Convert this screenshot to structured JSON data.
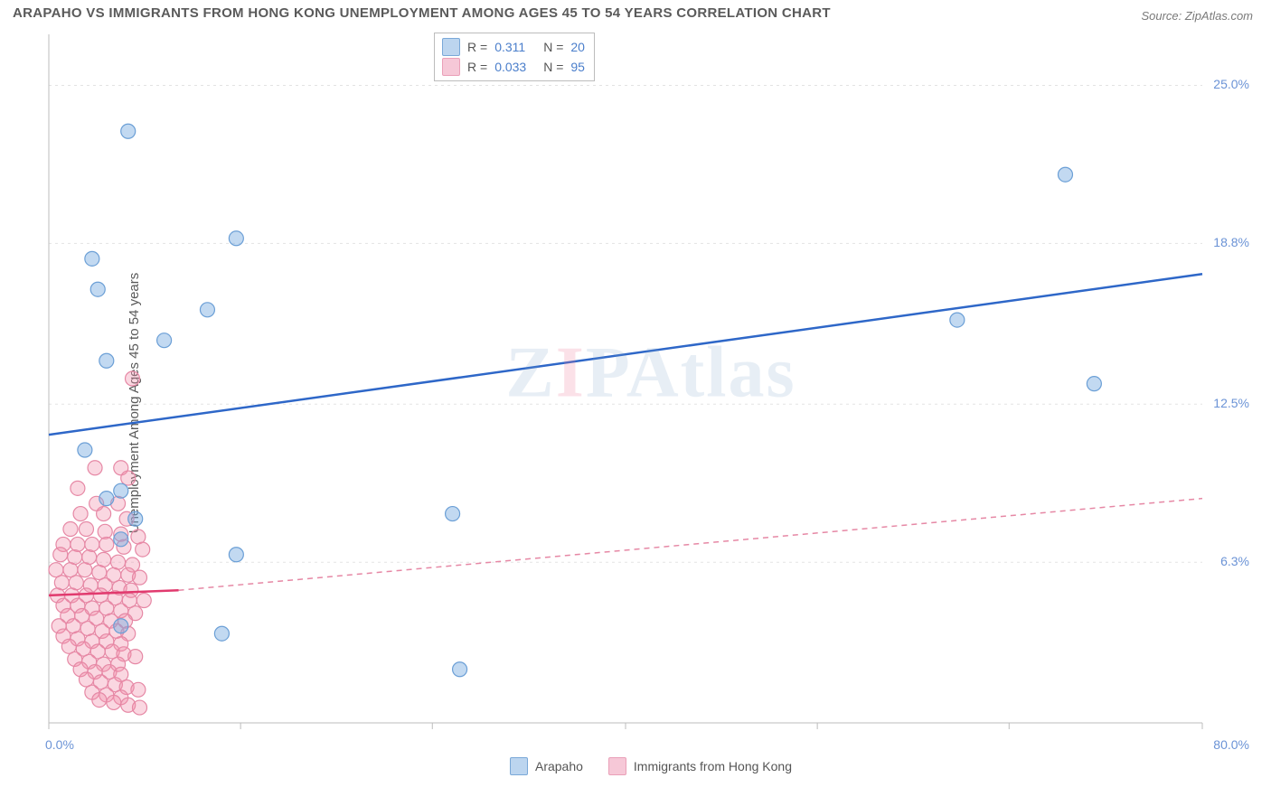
{
  "title": "ARAPAHO VS IMMIGRANTS FROM HONG KONG UNEMPLOYMENT AMONG AGES 45 TO 54 YEARS CORRELATION CHART",
  "source_label": "Source: ZipAtlas.com",
  "y_axis_label": "Unemployment Among Ages 45 to 54 years",
  "watermark": {
    "z": "Z",
    "i": "I",
    "p": "P",
    "atlas": "Atlas"
  },
  "chart": {
    "type": "scatter",
    "background_color": "#ffffff",
    "grid_color": "#e3e3e3",
    "axis_color": "#bcbcbc",
    "tick_label_color": "#6b93d6",
    "xlim": [
      0,
      80
    ],
    "ylim": [
      0,
      27
    ],
    "x_tick_positions": [
      0,
      13.3,
      26.6,
      40,
      53.3,
      66.6,
      80
    ],
    "x_tick_labels": {
      "0": "0.0%",
      "80": "80.0%"
    },
    "y_gridlines": [
      6.3,
      12.5,
      18.8,
      25.0
    ],
    "y_tick_labels": [
      "6.3%",
      "12.5%",
      "18.8%",
      "25.0%"
    ],
    "marker_radius": 8,
    "marker_stroke_width": 1.2,
    "trend_line_width_solid": 2.5,
    "trend_line_width_dash": 1.5,
    "dash_pattern": "6,5"
  },
  "series": {
    "arapaho": {
      "label": "Arapaho",
      "color_fill": "rgba(120,170,225,0.45)",
      "color_stroke": "#6b9fd6",
      "swatch_fill": "#bcd5ef",
      "swatch_border": "#7aa8d8",
      "stats": {
        "R_label": "R =",
        "R": "0.311",
        "N_label": "N =",
        "N": "20"
      },
      "points": [
        [
          5.5,
          23.2
        ],
        [
          13.0,
          19.0
        ],
        [
          3.0,
          18.2
        ],
        [
          3.4,
          17.0
        ],
        [
          11.0,
          16.2
        ],
        [
          8.0,
          15.0
        ],
        [
          4.0,
          14.2
        ],
        [
          70.5,
          21.5
        ],
        [
          63.0,
          15.8
        ],
        [
          72.5,
          13.3
        ],
        [
          2.5,
          10.7
        ],
        [
          5.0,
          9.1
        ],
        [
          4.0,
          8.8
        ],
        [
          6.0,
          8.0
        ],
        [
          28.0,
          8.2
        ],
        [
          5.0,
          7.2
        ],
        [
          13.0,
          6.6
        ],
        [
          12.0,
          3.5
        ],
        [
          5.0,
          3.8
        ],
        [
          28.5,
          2.1
        ]
      ],
      "trend": {
        "x1": 0,
        "y1": 11.3,
        "x2": 80,
        "y2": 17.6,
        "color": "#2e67c8",
        "dashed": false
      }
    },
    "hongkong": {
      "label": "Immigrants from Hong Kong",
      "color_fill": "rgba(240,140,170,0.35)",
      "color_stroke": "#e688a5",
      "swatch_fill": "#f6c8d7",
      "swatch_border": "#eaa0b8",
      "stats": {
        "R_label": "R =",
        "R": "0.033",
        "N_label": "N =",
        "N": "95"
      },
      "points": [
        [
          5.8,
          13.5
        ],
        [
          3.2,
          10.0
        ],
        [
          5.0,
          10.0
        ],
        [
          5.5,
          9.6
        ],
        [
          2.0,
          9.2
        ],
        [
          3.3,
          8.6
        ],
        [
          4.8,
          8.6
        ],
        [
          2.2,
          8.2
        ],
        [
          3.8,
          8.2
        ],
        [
          5.4,
          8.0
        ],
        [
          1.5,
          7.6
        ],
        [
          2.6,
          7.6
        ],
        [
          3.9,
          7.5
        ],
        [
          5.0,
          7.4
        ],
        [
          6.2,
          7.3
        ],
        [
          1.0,
          7.0
        ],
        [
          2.0,
          7.0
        ],
        [
          3.0,
          7.0
        ],
        [
          4.0,
          7.0
        ],
        [
          5.2,
          6.9
        ],
        [
          6.5,
          6.8
        ],
        [
          0.8,
          6.6
        ],
        [
          1.8,
          6.5
        ],
        [
          2.8,
          6.5
        ],
        [
          3.8,
          6.4
        ],
        [
          4.8,
          6.3
        ],
        [
          5.8,
          6.2
        ],
        [
          0.5,
          6.0
        ],
        [
          1.5,
          6.0
        ],
        [
          2.5,
          6.0
        ],
        [
          3.5,
          5.9
        ],
        [
          4.5,
          5.8
        ],
        [
          5.5,
          5.8
        ],
        [
          6.3,
          5.7
        ],
        [
          0.9,
          5.5
        ],
        [
          1.9,
          5.5
        ],
        [
          2.9,
          5.4
        ],
        [
          3.9,
          5.4
        ],
        [
          4.9,
          5.3
        ],
        [
          5.7,
          5.2
        ],
        [
          0.6,
          5.0
        ],
        [
          1.6,
          5.0
        ],
        [
          2.6,
          5.0
        ],
        [
          3.6,
          5.0
        ],
        [
          4.6,
          4.9
        ],
        [
          5.6,
          4.8
        ],
        [
          6.6,
          4.8
        ],
        [
          1.0,
          4.6
        ],
        [
          2.0,
          4.6
        ],
        [
          3.0,
          4.5
        ],
        [
          4.0,
          4.5
        ],
        [
          5.0,
          4.4
        ],
        [
          6.0,
          4.3
        ],
        [
          1.3,
          4.2
        ],
        [
          2.3,
          4.2
        ],
        [
          3.3,
          4.1
        ],
        [
          4.3,
          4.0
        ],
        [
          5.3,
          4.0
        ],
        [
          0.7,
          3.8
        ],
        [
          1.7,
          3.8
        ],
        [
          2.7,
          3.7
        ],
        [
          3.7,
          3.6
        ],
        [
          4.7,
          3.6
        ],
        [
          5.5,
          3.5
        ],
        [
          1.0,
          3.4
        ],
        [
          2.0,
          3.3
        ],
        [
          3.0,
          3.2
        ],
        [
          4.0,
          3.2
        ],
        [
          5.0,
          3.1
        ],
        [
          1.4,
          3.0
        ],
        [
          2.4,
          2.9
        ],
        [
          3.4,
          2.8
        ],
        [
          4.4,
          2.8
        ],
        [
          5.2,
          2.7
        ],
        [
          6.0,
          2.6
        ],
        [
          1.8,
          2.5
        ],
        [
          2.8,
          2.4
        ],
        [
          3.8,
          2.3
        ],
        [
          4.8,
          2.3
        ],
        [
          2.2,
          2.1
        ],
        [
          3.2,
          2.0
        ],
        [
          4.2,
          2.0
        ],
        [
          5.0,
          1.9
        ],
        [
          2.6,
          1.7
        ],
        [
          3.6,
          1.6
        ],
        [
          4.6,
          1.5
        ],
        [
          5.4,
          1.4
        ],
        [
          6.2,
          1.3
        ],
        [
          3.0,
          1.2
        ],
        [
          4.0,
          1.1
        ],
        [
          5.0,
          1.0
        ],
        [
          3.5,
          0.9
        ],
        [
          4.5,
          0.8
        ],
        [
          5.5,
          0.7
        ],
        [
          6.3,
          0.6
        ]
      ],
      "trend_solid": {
        "x1": 0,
        "y1": 5.0,
        "x2": 9,
        "y2": 5.2,
        "color": "#e13a6e",
        "dashed": false
      },
      "trend_dash": {
        "x1": 9,
        "y1": 5.2,
        "x2": 80,
        "y2": 8.8,
        "color": "#e688a5",
        "dashed": true
      }
    }
  }
}
